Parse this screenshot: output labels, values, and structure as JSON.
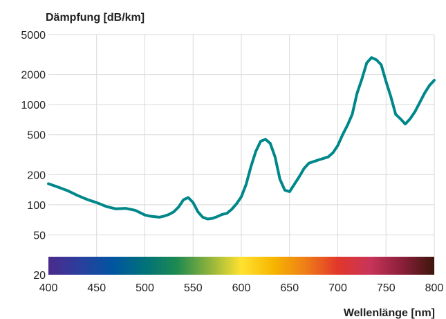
{
  "chart_data": {
    "type": "line",
    "ylabel": "Dämpfung [dB/km]",
    "xlabel": "Wellenlänge [nm]",
    "xlim": [
      400,
      800
    ],
    "ylim": [
      20,
      5000
    ],
    "yscale": "log",
    "grid": true,
    "x_ticks": [
      400,
      450,
      500,
      550,
      600,
      650,
      700,
      750,
      800
    ],
    "x_tick_labels": [
      "400",
      "450",
      "500",
      "550",
      "600",
      "650",
      "700",
      "750",
      "800"
    ],
    "y_ticks": [
      20,
      50,
      100,
      200,
      500,
      1000,
      2000,
      5000
    ],
    "y_tick_labels": [
      "20",
      "50",
      "100",
      "200",
      "500",
      "1000",
      "2000",
      "5000"
    ],
    "colors": {
      "series": "#00878a",
      "grid": "#d9d9d9"
    },
    "spectrum_colors": [
      "#4b2a8c",
      "#2a3f9e",
      "#0055a0",
      "#00717a",
      "#1e8a50",
      "#8eb23c",
      "#ffe230",
      "#f7b500",
      "#ef7d18",
      "#e2372a",
      "#c8345a",
      "#8a1f3a",
      "#3d160c"
    ],
    "series": [
      {
        "x": [
          400,
          410,
          420,
          430,
          440,
          450,
          460,
          470,
          480,
          490,
          500,
          505,
          510,
          515,
          520,
          525,
          530,
          535,
          540,
          545,
          550,
          555,
          560,
          565,
          570,
          575,
          580,
          585,
          590,
          595,
          600,
          605,
          610,
          615,
          620,
          625,
          630,
          635,
          640,
          645,
          650,
          655,
          660,
          665,
          670,
          680,
          690,
          695,
          700,
          705,
          710,
          715,
          720,
          725,
          730,
          735,
          740,
          745,
          750,
          755,
          760,
          765,
          770,
          775,
          780,
          785,
          790,
          795,
          800
        ],
        "values": [
          162,
          150,
          138,
          124,
          113,
          105,
          96,
          91,
          92,
          88,
          79,
          77,
          76,
          75,
          77,
          80,
          85,
          95,
          112,
          118,
          105,
          85,
          75,
          72,
          73,
          76,
          80,
          82,
          90,
          102,
          120,
          160,
          240,
          340,
          430,
          450,
          410,
          300,
          180,
          140,
          135,
          160,
          190,
          230,
          260,
          280,
          300,
          330,
          390,
          500,
          620,
          800,
          1300,
          1800,
          2600,
          2950,
          2800,
          2500,
          1700,
          1200,
          800,
          720,
          640,
          720,
          850,
          1050,
          1300,
          1550,
          1750
        ]
      }
    ]
  }
}
